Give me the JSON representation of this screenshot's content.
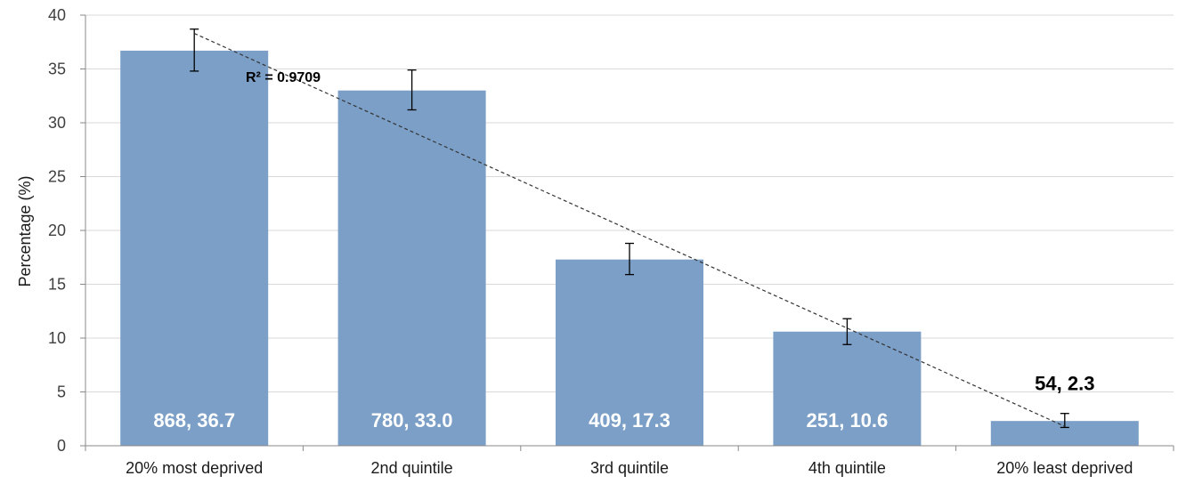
{
  "chart_data": {
    "type": "bar",
    "categories": [
      "20% most deprived",
      "2nd quintile",
      "3rd quintile",
      "4th quintile",
      "20% least deprived"
    ],
    "values": [
      36.7,
      33.0,
      17.3,
      10.6,
      2.3
    ],
    "counts": [
      868,
      780,
      409,
      251,
      54
    ],
    "data_labels": [
      "868, 36.7",
      "780, 33.0",
      "409, 17.3",
      "251, 10.6",
      "54, 2.3"
    ],
    "error_bars": [
      [
        34.8,
        38.7
      ],
      [
        31.2,
        34.9
      ],
      [
        15.9,
        18.8
      ],
      [
        9.4,
        11.8
      ],
      [
        1.7,
        3.0
      ]
    ],
    "trendline": {
      "type": "linear",
      "start": 38.3,
      "end": 1.8,
      "label": "R² = 0.9709"
    },
    "ylabel": "Percentage (%)",
    "ylim": [
      0,
      40
    ],
    "yticks": [
      0,
      5,
      10,
      15,
      20,
      25,
      30,
      35,
      40
    ],
    "grid": true,
    "legend": "none",
    "colors": {
      "bar": "#7b9fc7",
      "grid": "#d9d9d9",
      "axis": "#898989",
      "label_inside": "#ffffff",
      "label_outside": "#000000"
    }
  }
}
